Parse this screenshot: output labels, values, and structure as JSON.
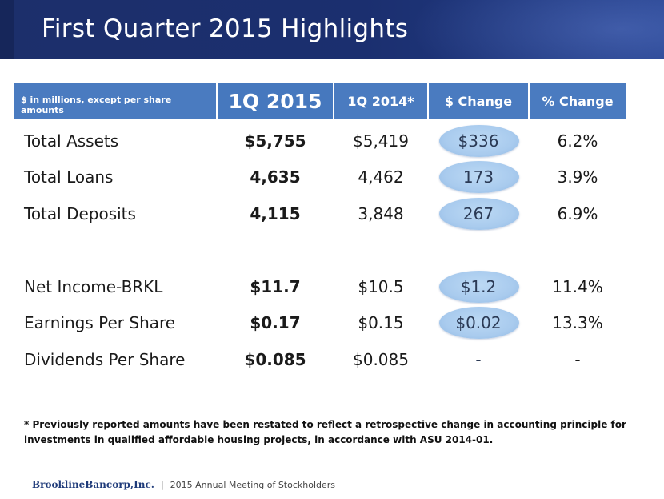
{
  "slide": {
    "title": "First Quarter 2015 Highlights"
  },
  "table": {
    "headers": {
      "note": "$ in millions, except per share amounts",
      "col1": "1Q 2015",
      "col2": "1Q 2014*",
      "col3": "$ Change",
      "col4": "% Change"
    },
    "rows": [
      {
        "label": "Total Assets",
        "q2015": "$5,755",
        "q2014": "$5,419",
        "dollar_change": "$336",
        "pct_change": "6.2%"
      },
      {
        "label": "Total Loans",
        "q2015": "4,635",
        "q2014": "4,462",
        "dollar_change": "173",
        "pct_change": "3.9%"
      },
      {
        "label": "Total Deposits",
        "q2015": "4,115",
        "q2014": "3,848",
        "dollar_change": "267",
        "pct_change": "6.9%"
      },
      {
        "label": "Net Income-BRKL",
        "q2015": "$11.7",
        "q2014": "$10.5",
        "dollar_change": "$1.2",
        "pct_change": "11.4%"
      },
      {
        "label": "Earnings Per Share",
        "q2015": "$0.17",
        "q2014": "$0.15",
        "dollar_change": "$0.02",
        "pct_change": "13.3%"
      },
      {
        "label": "Dividends Per Share",
        "q2015": "$0.085",
        "q2014": "$0.085",
        "dollar_change": "-",
        "pct_change": "-"
      }
    ]
  },
  "footnote": "* Previously reported amounts have been restated to reflect a retrospective change in accounting principle for investments in qualified affordable housing projects, in accordance with ASU 2014-01.",
  "footer": {
    "logo": "BrooklineBancorp,Inc.",
    "separator": "|",
    "event": "2015 Annual Meeting of Stockholders"
  },
  "colors": {
    "header_bar": "#1b2f6f",
    "table_header": "#4a7bc0",
    "highlight_oval": "#a9cbee"
  }
}
